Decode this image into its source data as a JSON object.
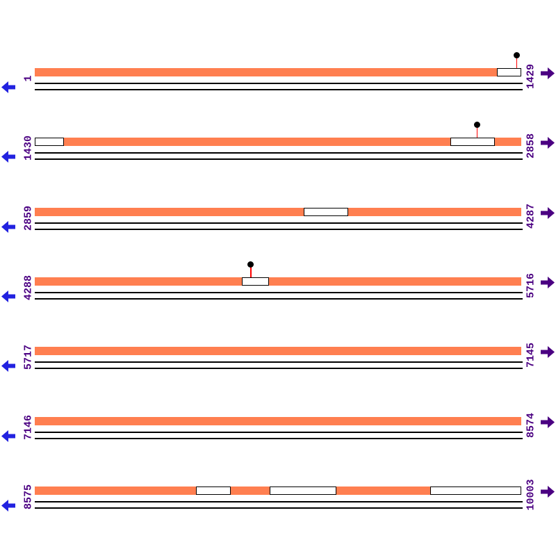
{
  "colors": {
    "background": "#FFFFFF",
    "feature": "#FF7F50",
    "nav_left_arrow": "#2222E0",
    "nav_right_arrow": "#4B0082",
    "label": "#4B0082",
    "marker_stem": "#FF0000",
    "marker_dot": "#000000",
    "line": "#000000"
  },
  "icons": {
    "nav_left": "arrow-left-icon",
    "nav_right": "arrow-right-icon",
    "marker": "lollipop-pin-icon"
  },
  "map": {
    "total_rows": 7,
    "first_position": "1",
    "last_position": "10003"
  },
  "rows": [
    {
      "start_label": "1",
      "end_label": "1429",
      "segments": [
        {
          "kind": "feature",
          "from": 0.0,
          "to": 0.95
        },
        {
          "kind": "gap",
          "from": 0.95,
          "to": 1.0
        }
      ],
      "markers": [
        {
          "pos": 0.991
        }
      ]
    },
    {
      "start_label": "1430",
      "end_label": "2858",
      "segments": [
        {
          "kind": "gap",
          "from": 0.0,
          "to": 0.06
        },
        {
          "kind": "feature",
          "from": 0.06,
          "to": 0.854
        },
        {
          "kind": "gap",
          "from": 0.854,
          "to": 0.946
        },
        {
          "kind": "feature",
          "from": 0.946,
          "to": 1.0
        }
      ],
      "markers": [
        {
          "pos": 0.909
        }
      ]
    },
    {
      "start_label": "2859",
      "end_label": "4287",
      "segments": [
        {
          "kind": "feature",
          "from": 0.0,
          "to": 0.553
        },
        {
          "kind": "gap",
          "from": 0.553,
          "to": 0.644
        },
        {
          "kind": "feature",
          "from": 0.644,
          "to": 1.0
        }
      ],
      "markers": []
    },
    {
      "start_label": "4288",
      "end_label": "5716",
      "segments": [
        {
          "kind": "feature",
          "from": 0.0,
          "to": 0.426
        },
        {
          "kind": "gap",
          "from": 0.426,
          "to": 0.481
        },
        {
          "kind": "feature",
          "from": 0.481,
          "to": 1.0
        }
      ],
      "markers": [
        {
          "pos": 0.444
        }
      ]
    },
    {
      "start_label": "5717",
      "end_label": "7145",
      "segments": [
        {
          "kind": "feature",
          "from": 0.0,
          "to": 1.0
        }
      ],
      "markers": []
    },
    {
      "start_label": "7146",
      "end_label": "8574",
      "segments": [
        {
          "kind": "feature",
          "from": 0.0,
          "to": 1.0
        }
      ],
      "markers": []
    },
    {
      "start_label": "8575",
      "end_label": "10003",
      "segments": [
        {
          "kind": "feature",
          "from": 0.0,
          "to": 0.331
        },
        {
          "kind": "gap",
          "from": 0.331,
          "to": 0.403
        },
        {
          "kind": "feature",
          "from": 0.403,
          "to": 0.483
        },
        {
          "kind": "gap",
          "from": 0.483,
          "to": 0.62
        },
        {
          "kind": "feature",
          "from": 0.62,
          "to": 0.813
        },
        {
          "kind": "gap",
          "from": 0.813,
          "to": 1.0
        }
      ],
      "markers": []
    }
  ]
}
